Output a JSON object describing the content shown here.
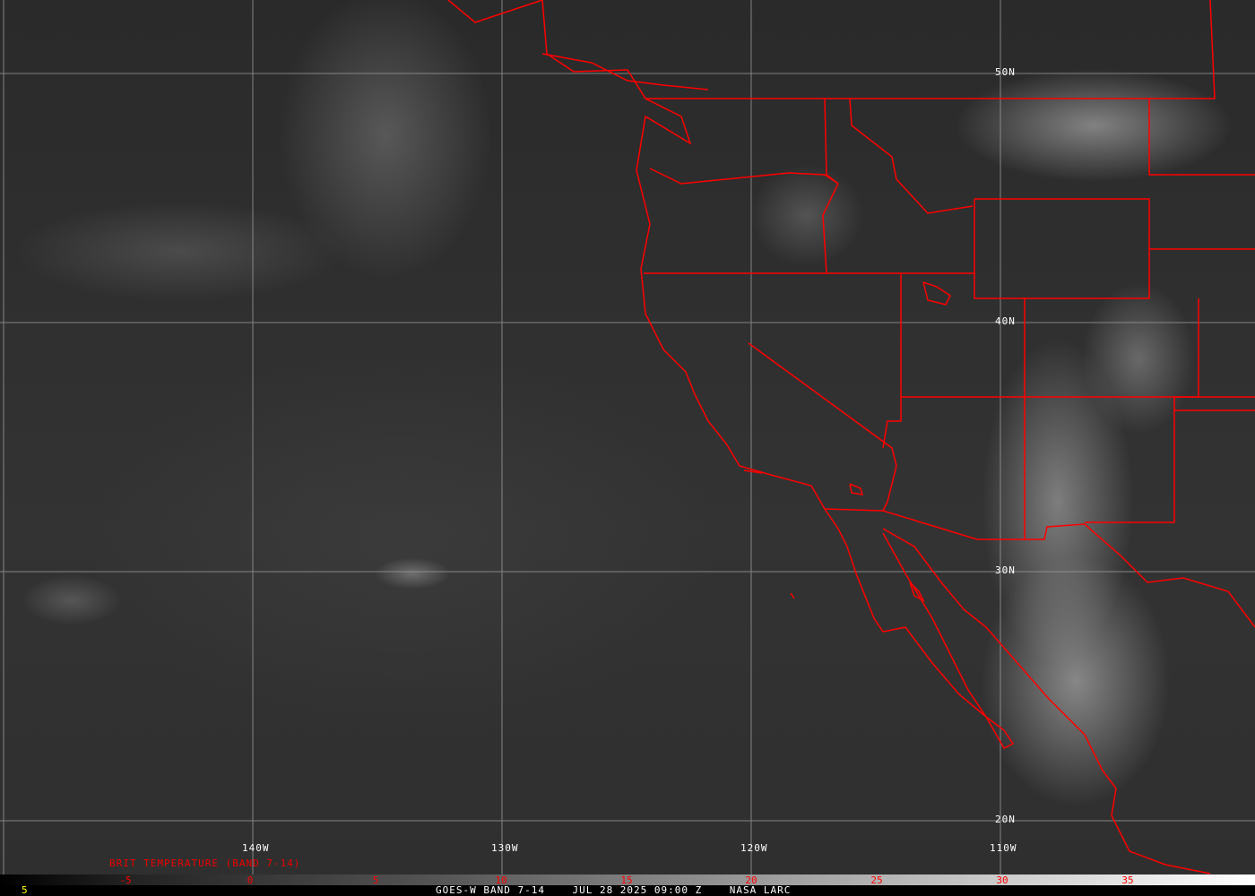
{
  "map": {
    "type": "satellite-infrared",
    "boundary_color": "#ff0000",
    "grid_color": "#9a9a9a",
    "longitude_labels": [
      "140W",
      "130W",
      "120W",
      "110W"
    ],
    "latitude_labels": [
      "50N",
      "40N",
      "30N",
      "20N"
    ]
  },
  "legend": {
    "title": "BRIT TEMPERATURE (BAND 7-14)",
    "ticks": [
      "-5",
      "0",
      "5",
      "10",
      "15",
      "20",
      "25",
      "30",
      "35"
    ],
    "tick_color": "#ff0000"
  },
  "footer": {
    "frame": "5",
    "caption": "GOES-W BAND 7-14    JUL 28 2025 09:00 Z    NASA LARC"
  }
}
